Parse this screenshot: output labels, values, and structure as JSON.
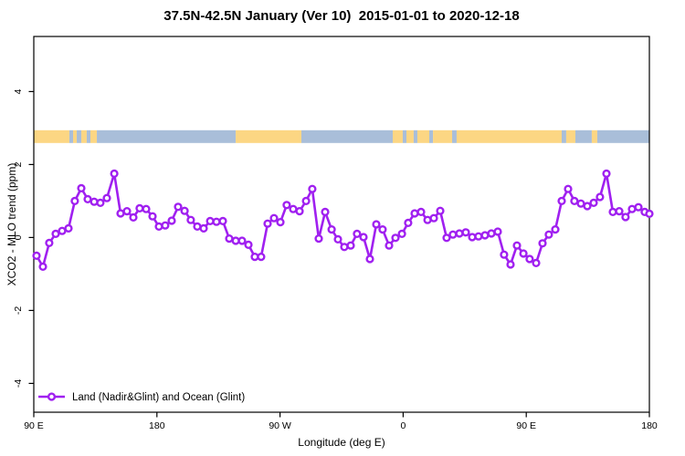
{
  "title": "37.5N-42.5N January (Ver 10)  2015-01-01 to 2020-12-18",
  "legend": {
    "label": "Land (Nadir&Glint) and Ocean (Glint)"
  },
  "colors": {
    "series": "#a020f0",
    "marker_fill": "#ffffff",
    "land": "#fcd683",
    "ocean": "#a9bed9",
    "axis": "#000000"
  },
  "chart_data": {
    "type": "line",
    "title": "37.5N-42.5N January (Ver 10)  2015-01-01 to 2020-12-18",
    "xlabel": "Longitude (deg E)",
    "ylabel": "XCO2 - MLO trend (ppm)",
    "series_name": "Land (Nadir&Glint) and Ocean (Glint)",
    "x_axis_note": "x = degrees eastward from 90E; axis wraps 90E > 180 > 90W > 0 > 90E > 180",
    "xlim": [
      0,
      450
    ],
    "ylim": [
      -4.79,
      5.51
    ],
    "x_ticks": [
      {
        "pos": 0,
        "label": "90 E"
      },
      {
        "pos": 90,
        "label": "180"
      },
      {
        "pos": 180,
        "label": "90 W"
      },
      {
        "pos": 270,
        "label": "0"
      },
      {
        "pos": 360,
        "label": "90 E"
      },
      {
        "pos": 450,
        "label": "180"
      }
    ],
    "y_ticks": [
      {
        "pos": 4,
        "label": "4"
      },
      {
        "pos": 2,
        "label": "2"
      },
      {
        "pos": 0,
        "label": "0"
      },
      {
        "pos": -2,
        "label": "-2"
      },
      {
        "pos": -4,
        "label": "-4"
      }
    ],
    "grid": false,
    "legend_position": "bottom-left",
    "points": [
      [
        2,
        -0.5
      ],
      [
        6.7,
        -0.8
      ],
      [
        11.3,
        -0.15
      ],
      [
        16,
        0.1
      ],
      [
        20.7,
        0.18
      ],
      [
        25.4,
        0.25
      ],
      [
        30,
        1.0
      ],
      [
        34.7,
        1.35
      ],
      [
        39.4,
        1.05
      ],
      [
        44.1,
        0.98
      ],
      [
        48.7,
        0.95
      ],
      [
        53.4,
        1.08
      ],
      [
        58.8,
        1.75
      ],
      [
        63.4,
        0.66
      ],
      [
        68.1,
        0.72
      ],
      [
        72.8,
        0.55
      ],
      [
        77.4,
        0.8
      ],
      [
        82.1,
        0.78
      ],
      [
        86.8,
        0.58
      ],
      [
        91.5,
        0.3
      ],
      [
        96.1,
        0.33
      ],
      [
        100.8,
        0.46
      ],
      [
        105.5,
        0.84
      ],
      [
        110.2,
        0.73
      ],
      [
        114.8,
        0.48
      ],
      [
        119.5,
        0.3
      ],
      [
        124.2,
        0.25
      ],
      [
        128.9,
        0.45
      ],
      [
        133.5,
        0.43
      ],
      [
        138.2,
        0.45
      ],
      [
        142.9,
        -0.03
      ],
      [
        147.6,
        -0.09
      ],
      [
        152.2,
        -0.09
      ],
      [
        156.9,
        -0.2
      ],
      [
        161.6,
        -0.53
      ],
      [
        166.2,
        -0.53
      ],
      [
        170.9,
        0.38
      ],
      [
        175.6,
        0.53
      ],
      [
        180.3,
        0.42
      ],
      [
        184.9,
        0.89
      ],
      [
        189.6,
        0.78
      ],
      [
        194.3,
        0.72
      ],
      [
        199,
        1.0
      ],
      [
        203.6,
        1.33
      ],
      [
        208.3,
        -0.03
      ],
      [
        213,
        0.7
      ],
      [
        217.7,
        0.22
      ],
      [
        222.3,
        -0.05
      ],
      [
        227,
        -0.26
      ],
      [
        231.7,
        -0.22
      ],
      [
        236.3,
        0.1
      ],
      [
        241,
        0.01
      ],
      [
        245.7,
        -0.59
      ],
      [
        250.4,
        0.36
      ],
      [
        255,
        0.22
      ],
      [
        259.7,
        -0.22
      ],
      [
        264.4,
        -0.01
      ],
      [
        269.1,
        0.1
      ],
      [
        273.7,
        0.4
      ],
      [
        278.4,
        0.66
      ],
      [
        283.1,
        0.7
      ],
      [
        287.8,
        0.48
      ],
      [
        292.4,
        0.53
      ],
      [
        297.1,
        0.73
      ],
      [
        301.8,
        -0.01
      ],
      [
        306.4,
        0.08
      ],
      [
        311.1,
        0.11
      ],
      [
        315.8,
        0.14
      ],
      [
        320.5,
        0.01
      ],
      [
        325.1,
        0.03
      ],
      [
        329.8,
        0.06
      ],
      [
        334.5,
        0.11
      ],
      [
        339.2,
        0.16
      ],
      [
        343.8,
        -0.47
      ],
      [
        348.5,
        -0.74
      ],
      [
        353.2,
        -0.22
      ],
      [
        357.9,
        -0.44
      ],
      [
        362.5,
        -0.59
      ],
      [
        367.2,
        -0.7
      ],
      [
        371.9,
        -0.16
      ],
      [
        376.5,
        0.08
      ],
      [
        381.2,
        0.22
      ],
      [
        385.9,
        1.0
      ],
      [
        390.6,
        1.33
      ],
      [
        395.2,
        1.0
      ],
      [
        399.9,
        0.93
      ],
      [
        404.6,
        0.86
      ],
      [
        409.3,
        0.95
      ],
      [
        413.9,
        1.11
      ],
      [
        418.6,
        1.75
      ],
      [
        423.3,
        0.7
      ],
      [
        428,
        0.72
      ],
      [
        432.6,
        0.56
      ],
      [
        437.3,
        0.78
      ],
      [
        442,
        0.83
      ],
      [
        446.6,
        0.7
      ],
      [
        450,
        0.65
      ]
    ],
    "surface_band": {
      "description": "land/ocean strip for latitude band 37.5N-42.5N",
      "y_range": [
        2.59,
        2.94
      ],
      "segments": [
        {
          "from": 0,
          "to": 26,
          "type": "land"
        },
        {
          "from": 26,
          "to": 28.7,
          "type": "ocean"
        },
        {
          "from": 28.7,
          "to": 31.4,
          "type": "land"
        },
        {
          "from": 31.4,
          "to": 34.7,
          "type": "ocean"
        },
        {
          "from": 34.7,
          "to": 38.7,
          "type": "land"
        },
        {
          "from": 38.7,
          "to": 41.4,
          "type": "ocean"
        },
        {
          "from": 41.4,
          "to": 46.1,
          "type": "land"
        },
        {
          "from": 46.1,
          "to": 147.6,
          "type": "ocean"
        },
        {
          "from": 147.6,
          "to": 195.6,
          "type": "land"
        },
        {
          "from": 195.6,
          "to": 262.4,
          "type": "ocean"
        },
        {
          "from": 262.4,
          "to": 269.7,
          "type": "land"
        },
        {
          "from": 269.7,
          "to": 272.4,
          "type": "ocean"
        },
        {
          "from": 272.4,
          "to": 277.7,
          "type": "land"
        },
        {
          "from": 277.7,
          "to": 280.4,
          "type": "ocean"
        },
        {
          "from": 280.4,
          "to": 289.1,
          "type": "land"
        },
        {
          "from": 289.1,
          "to": 291.8,
          "type": "ocean"
        },
        {
          "from": 291.8,
          "to": 305.8,
          "type": "land"
        },
        {
          "from": 305.8,
          "to": 309.1,
          "type": "ocean"
        },
        {
          "from": 309.1,
          "to": 385.9,
          "type": "land"
        },
        {
          "from": 385.9,
          "to": 389.2,
          "type": "ocean"
        },
        {
          "from": 389.2,
          "to": 395.9,
          "type": "land"
        },
        {
          "from": 395.9,
          "to": 407.9,
          "type": "ocean"
        },
        {
          "from": 407.9,
          "to": 411.9,
          "type": "land"
        },
        {
          "from": 411.9,
          "to": 450,
          "type": "ocean"
        }
      ]
    }
  }
}
